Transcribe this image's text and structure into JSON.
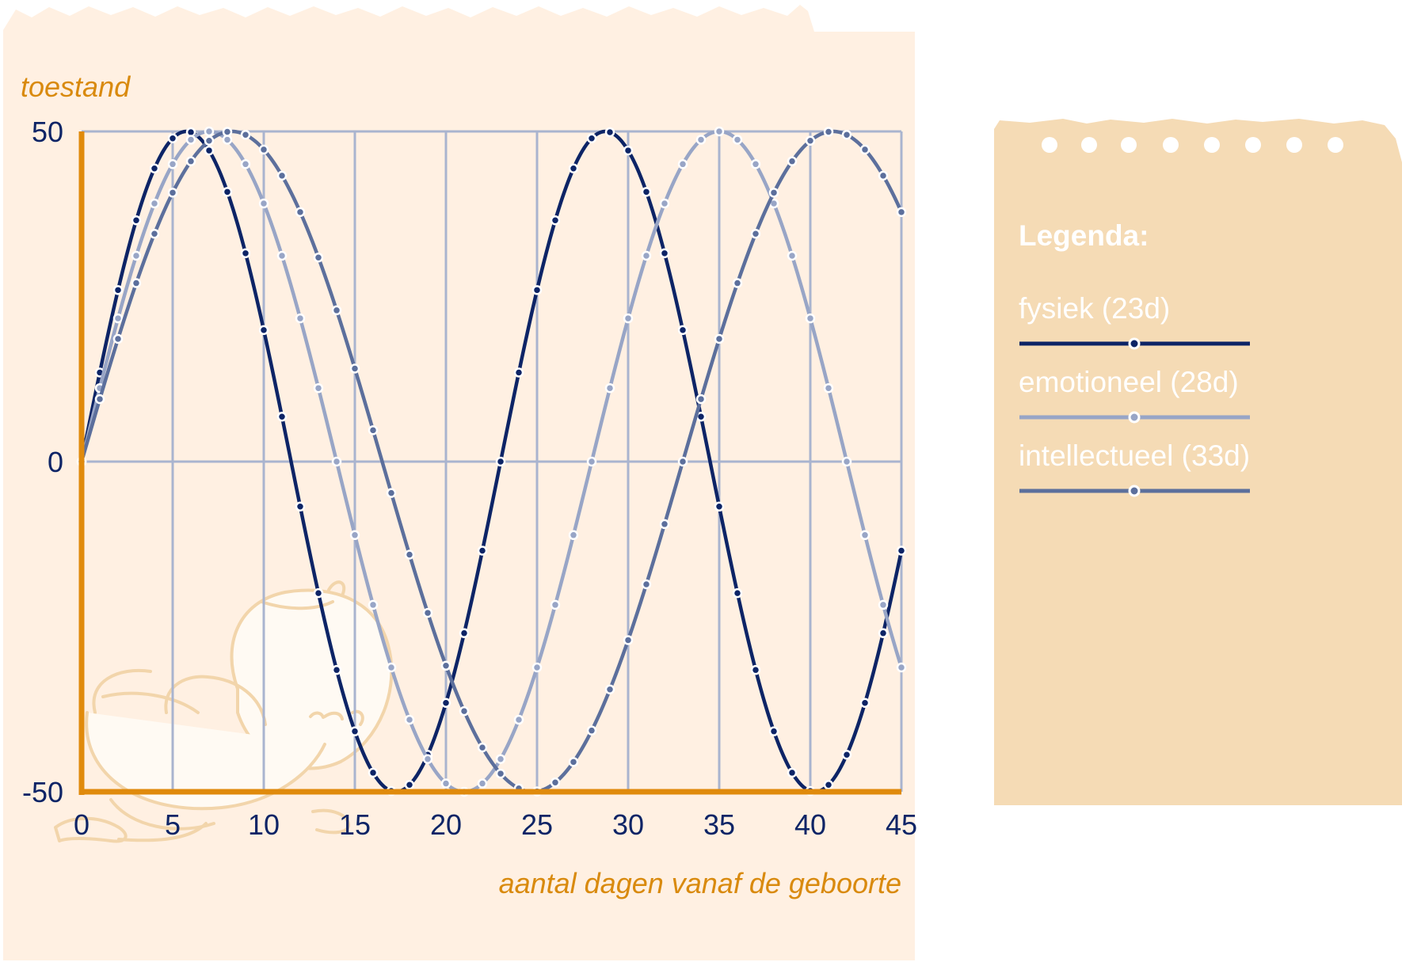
{
  "colors": {
    "panel_bg": "#fff0e2",
    "legend_bg": "#f5dbb5",
    "grid": "#a9b4cf",
    "axis": "#e08a0c",
    "label_orange": "#d98a0e",
    "tick_text": "#0d2466",
    "baby_outline": "#f2d5ab"
  },
  "chart_data": {
    "type": "line",
    "title": "",
    "xlabel": "aantal dagen vanaf de geboorte",
    "ylabel": "toestand",
    "xlim": [
      0,
      45
    ],
    "ylim": [
      -50,
      50
    ],
    "x_ticks": [
      0,
      5,
      10,
      15,
      20,
      25,
      30,
      35,
      40,
      45
    ],
    "x_tick_labels": [
      "0",
      "5",
      "10",
      "15",
      "20",
      "25",
      "30",
      "35",
      "40",
      "45"
    ],
    "y_ticks": [
      50,
      0,
      -50
    ],
    "y_tick_labels": [
      "50",
      "0",
      "-50"
    ],
    "grid": true,
    "legend_position": "right",
    "legend_title": "Legenda:",
    "sample_step": 1,
    "series": [
      {
        "name": "fysiek (23d)",
        "period": 23,
        "amplitude": 50,
        "color": "#0d2466",
        "dot_color": "#0d2466"
      },
      {
        "name": "emotioneel (28d)",
        "period": 28,
        "amplitude": 50,
        "color": "#98a5c6",
        "dot_color": "#98a5c6"
      },
      {
        "name": "intellectueel (33d)",
        "period": 33,
        "amplitude": 50,
        "color": "#5c6f9c",
        "dot_color": "#5c6f9c"
      }
    ]
  }
}
